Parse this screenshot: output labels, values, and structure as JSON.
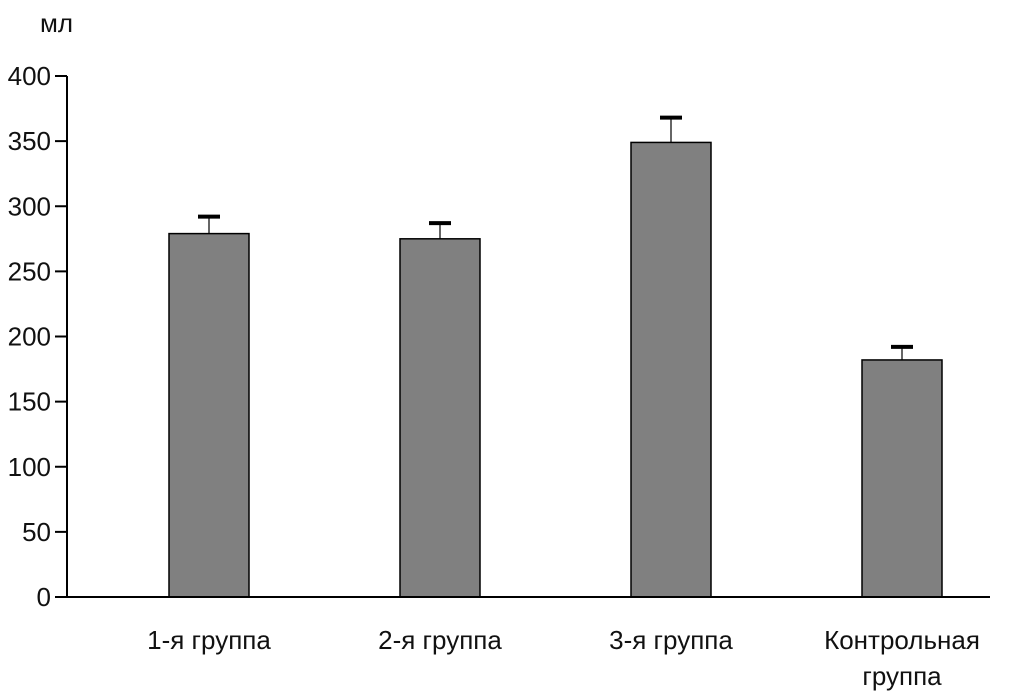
{
  "chart_data": {
    "type": "bar",
    "title": "",
    "xlabel": "",
    "ylabel": "мл",
    "ylim": [
      0,
      400
    ],
    "yticks": [
      0,
      50,
      100,
      150,
      200,
      250,
      300,
      350,
      400
    ],
    "grid": false,
    "categories": [
      [
        "1-я группа"
      ],
      [
        "2-я группа"
      ],
      [
        "3-я группа"
      ],
      [
        "Контрольная",
        "группа"
      ]
    ],
    "values": [
      279,
      275,
      349,
      182
    ],
    "error_plus": [
      13,
      12,
      19,
      10
    ],
    "colors": {
      "bar": "#808080",
      "bar_stroke": "#000000",
      "axis": "#000000"
    }
  }
}
